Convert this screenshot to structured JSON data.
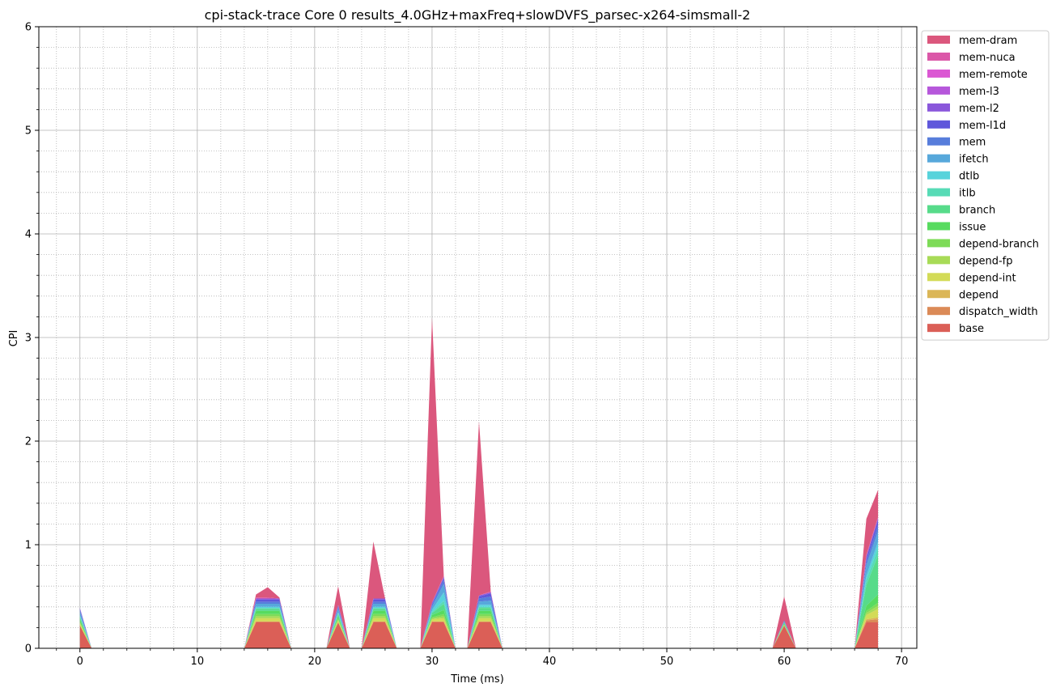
{
  "chart_data": {
    "type": "area",
    "stacked": true,
    "title": "cpi-stack-trace Core 0 results_4.0GHz+maxFreq+slowDVFS_parsec-x264-simsmall-2",
    "xlabel": "Time (ms)",
    "ylabel": "CPI",
    "xlim": [
      -3.5,
      71.3
    ],
    "ylim": [
      0,
      6
    ],
    "xticks": [
      0,
      10,
      20,
      30,
      40,
      50,
      60,
      70
    ],
    "yticks": [
      0,
      1,
      2,
      3,
      4,
      5,
      6
    ],
    "grid": true,
    "minor_grid": true,
    "legend_position": "outside-top-right",
    "x": [
      0,
      1,
      2,
      3,
      4,
      5,
      6,
      7,
      8,
      9,
      10,
      11,
      12,
      13,
      14,
      15,
      16,
      17,
      18,
      19,
      20,
      21,
      22,
      23,
      24,
      25,
      26,
      27,
      28,
      29,
      30,
      31,
      32,
      33,
      34,
      35,
      36,
      37,
      38,
      39,
      40,
      41,
      42,
      43,
      44,
      45,
      46,
      47,
      48,
      49,
      50,
      51,
      52,
      53,
      54,
      55,
      56,
      57,
      58,
      59,
      60,
      61,
      62,
      63,
      64,
      65,
      66,
      67,
      68
    ],
    "series": [
      {
        "name": "base",
        "color": "#db5f57",
        "values": [
          0.22,
          0,
          0,
          0,
          0,
          0,
          0,
          0,
          0,
          0,
          0,
          0,
          0,
          0,
          0,
          0.25,
          0.25,
          0.25,
          0,
          0,
          0,
          0,
          0.25,
          0,
          0,
          0.25,
          0.25,
          0,
          0,
          0,
          0.25,
          0.25,
          0,
          0,
          0.25,
          0.25,
          0,
          0,
          0,
          0,
          0,
          0,
          0,
          0,
          0,
          0,
          0,
          0,
          0,
          0,
          0,
          0,
          0,
          0,
          0,
          0,
          0,
          0,
          0,
          0,
          0.22,
          0,
          0,
          0,
          0,
          0,
          0,
          0.25,
          0.25
        ]
      },
      {
        "name": "dispatch_width",
        "color": "#db8a57",
        "values": [
          0,
          0,
          0,
          0,
          0,
          0,
          0,
          0,
          0,
          0,
          0,
          0,
          0,
          0,
          0,
          0.01,
          0.01,
          0.01,
          0,
          0,
          0,
          0,
          0,
          0,
          0,
          0.01,
          0.01,
          0,
          0,
          0,
          0.01,
          0.01,
          0,
          0,
          0.01,
          0.01,
          0,
          0,
          0,
          0,
          0,
          0,
          0,
          0,
          0,
          0,
          0,
          0,
          0,
          0,
          0,
          0,
          0,
          0,
          0,
          0,
          0,
          0,
          0,
          0,
          0,
          0,
          0,
          0,
          0,
          0,
          0,
          0.02,
          0.03
        ]
      },
      {
        "name": "depend",
        "color": "#dbb657",
        "values": [
          0,
          0,
          0,
          0,
          0,
          0,
          0,
          0,
          0,
          0,
          0,
          0,
          0,
          0,
          0,
          0,
          0,
          0,
          0,
          0,
          0,
          0,
          0,
          0,
          0,
          0,
          0,
          0,
          0,
          0,
          0,
          0,
          0,
          0,
          0,
          0,
          0,
          0,
          0,
          0,
          0,
          0,
          0,
          0,
          0,
          0,
          0,
          0,
          0,
          0,
          0,
          0,
          0,
          0,
          0,
          0,
          0,
          0,
          0,
          0,
          0,
          0,
          0,
          0,
          0,
          0,
          0,
          0.01,
          0.02
        ]
      },
      {
        "name": "depend-int",
        "color": "#d3db57",
        "values": [
          0.02,
          0,
          0,
          0,
          0,
          0,
          0,
          0,
          0,
          0,
          0,
          0,
          0,
          0,
          0,
          0.03,
          0.03,
          0.03,
          0,
          0,
          0,
          0,
          0.02,
          0,
          0,
          0.03,
          0.03,
          0,
          0,
          0,
          0.02,
          0.03,
          0,
          0,
          0.03,
          0.03,
          0,
          0,
          0,
          0,
          0,
          0,
          0,
          0,
          0,
          0,
          0,
          0,
          0,
          0,
          0,
          0,
          0,
          0,
          0,
          0,
          0,
          0,
          0,
          0,
          0.01,
          0,
          0,
          0,
          0,
          0,
          0,
          0.04,
          0.08
        ]
      },
      {
        "name": "depend-fp",
        "color": "#a8db57",
        "values": [
          0.01,
          0,
          0,
          0,
          0,
          0,
          0,
          0,
          0,
          0,
          0,
          0,
          0,
          0,
          0,
          0.02,
          0.02,
          0.02,
          0,
          0,
          0,
          0,
          0.01,
          0,
          0,
          0.02,
          0.02,
          0,
          0,
          0,
          0.01,
          0.02,
          0,
          0,
          0.02,
          0.02,
          0,
          0,
          0,
          0,
          0,
          0,
          0,
          0,
          0,
          0,
          0,
          0,
          0,
          0,
          0,
          0,
          0,
          0,
          0,
          0,
          0,
          0,
          0,
          0,
          0,
          0,
          0,
          0,
          0,
          0,
          0,
          0.02,
          0.03
        ]
      },
      {
        "name": "depend-branch",
        "color": "#7ddb57",
        "values": [
          0.01,
          0,
          0,
          0,
          0,
          0,
          0,
          0,
          0,
          0,
          0,
          0,
          0,
          0,
          0,
          0.02,
          0.02,
          0.02,
          0,
          0,
          0,
          0,
          0.01,
          0,
          0,
          0.02,
          0.02,
          0,
          0,
          0,
          0.01,
          0.02,
          0,
          0,
          0.02,
          0.02,
          0,
          0,
          0,
          0,
          0,
          0,
          0,
          0,
          0,
          0,
          0,
          0,
          0,
          0,
          0,
          0,
          0,
          0,
          0,
          0,
          0,
          0,
          0,
          0,
          0,
          0,
          0,
          0,
          0,
          0,
          0,
          0.02,
          0.03
        ]
      },
      {
        "name": "issue",
        "color": "#57db5f",
        "values": [
          0.02,
          0,
          0,
          0,
          0,
          0,
          0,
          0,
          0,
          0,
          0,
          0,
          0,
          0,
          0,
          0.03,
          0.03,
          0.03,
          0,
          0,
          0,
          0,
          0.02,
          0,
          0,
          0.03,
          0.03,
          0,
          0,
          0,
          0.02,
          0.04,
          0,
          0,
          0.03,
          0.03,
          0,
          0,
          0,
          0,
          0,
          0,
          0,
          0,
          0,
          0,
          0,
          0,
          0,
          0,
          0,
          0,
          0,
          0,
          0,
          0,
          0,
          0,
          0,
          0,
          0.01,
          0,
          0,
          0,
          0,
          0,
          0,
          0.05,
          0.08
        ]
      },
      {
        "name": "branch",
        "color": "#57db8a",
        "values": [
          0.02,
          0,
          0,
          0,
          0,
          0,
          0,
          0,
          0,
          0,
          0,
          0,
          0,
          0,
          0,
          0.02,
          0.02,
          0.02,
          0,
          0,
          0,
          0,
          0.02,
          0,
          0,
          0.02,
          0.02,
          0,
          0,
          0,
          0.02,
          0.06,
          0,
          0,
          0.03,
          0.03,
          0,
          0,
          0,
          0,
          0,
          0,
          0,
          0,
          0,
          0,
          0,
          0,
          0,
          0,
          0,
          0,
          0,
          0,
          0,
          0,
          0,
          0,
          0,
          0,
          0.01,
          0,
          0,
          0,
          0,
          0,
          0,
          0.2,
          0.38
        ]
      },
      {
        "name": "itlb",
        "color": "#57dbb6",
        "values": [
          0.01,
          0,
          0,
          0,
          0,
          0,
          0,
          0,
          0,
          0,
          0,
          0,
          0,
          0,
          0,
          0.01,
          0.01,
          0.01,
          0,
          0,
          0,
          0,
          0.01,
          0,
          0,
          0.01,
          0.01,
          0,
          0,
          0,
          0.01,
          0.03,
          0,
          0,
          0.01,
          0.01,
          0,
          0,
          0,
          0,
          0,
          0,
          0,
          0,
          0,
          0,
          0,
          0,
          0,
          0,
          0,
          0,
          0,
          0,
          0,
          0,
          0,
          0,
          0,
          0,
          0,
          0,
          0,
          0,
          0,
          0,
          0,
          0.05,
          0.07
        ]
      },
      {
        "name": "dtlb",
        "color": "#57d3db",
        "values": [
          0.01,
          0,
          0,
          0,
          0,
          0,
          0,
          0,
          0,
          0,
          0,
          0,
          0,
          0,
          0,
          0.01,
          0.01,
          0.01,
          0,
          0,
          0,
          0,
          0.01,
          0,
          0,
          0.01,
          0.01,
          0,
          0,
          0,
          0.02,
          0.08,
          0,
          0,
          0.02,
          0.02,
          0,
          0,
          0,
          0,
          0,
          0,
          0,
          0,
          0,
          0,
          0,
          0,
          0,
          0,
          0,
          0,
          0,
          0,
          0,
          0,
          0,
          0,
          0,
          0,
          0,
          0,
          0,
          0,
          0,
          0,
          0,
          0.04,
          0.06
        ]
      },
      {
        "name": "ifetch",
        "color": "#57a8db",
        "values": [
          0.03,
          0,
          0,
          0,
          0,
          0,
          0,
          0,
          0,
          0,
          0,
          0,
          0,
          0,
          0,
          0.03,
          0.03,
          0.03,
          0,
          0,
          0,
          0,
          0.03,
          0,
          0,
          0.03,
          0.03,
          0,
          0,
          0,
          0.03,
          0.08,
          0,
          0,
          0.03,
          0.04,
          0,
          0,
          0,
          0,
          0,
          0,
          0,
          0,
          0,
          0,
          0,
          0,
          0,
          0,
          0,
          0,
          0,
          0,
          0,
          0,
          0,
          0,
          0,
          0,
          0.01,
          0,
          0,
          0,
          0,
          0,
          0,
          0.1,
          0.1
        ]
      },
      {
        "name": "mem",
        "color": "#577ddb",
        "values": [
          0.02,
          0,
          0,
          0,
          0,
          0,
          0,
          0,
          0,
          0,
          0,
          0,
          0,
          0,
          0,
          0.02,
          0.02,
          0.02,
          0,
          0,
          0,
          0,
          0.02,
          0,
          0,
          0.02,
          0.02,
          0,
          0,
          0,
          0.02,
          0.04,
          0,
          0,
          0.03,
          0.04,
          0,
          0,
          0,
          0,
          0,
          0,
          0,
          0,
          0,
          0,
          0,
          0,
          0,
          0,
          0,
          0,
          0,
          0,
          0,
          0,
          0,
          0,
          0,
          0,
          0.01,
          0,
          0,
          0,
          0,
          0,
          0,
          0.04,
          0.06
        ]
      },
      {
        "name": "mem-l1d",
        "color": "#5f57db",
        "values": [
          0.01,
          0,
          0,
          0,
          0,
          0,
          0,
          0,
          0,
          0,
          0,
          0,
          0,
          0,
          0,
          0.02,
          0.02,
          0.02,
          0,
          0,
          0,
          0,
          0.01,
          0,
          0,
          0.02,
          0.02,
          0,
          0,
          0,
          0.01,
          0.02,
          0,
          0,
          0.02,
          0.03,
          0,
          0,
          0,
          0,
          0,
          0,
          0,
          0,
          0,
          0,
          0,
          0,
          0,
          0,
          0,
          0,
          0,
          0,
          0,
          0,
          0,
          0,
          0,
          0,
          0,
          0,
          0,
          0,
          0,
          0,
          0,
          0.03,
          0.05
        ]
      },
      {
        "name": "mem-l2",
        "color": "#8a57db",
        "values": [
          0.01,
          0,
          0,
          0,
          0,
          0,
          0,
          0,
          0,
          0,
          0,
          0,
          0,
          0,
          0,
          0.01,
          0.01,
          0.01,
          0,
          0,
          0,
          0,
          0.01,
          0,
          0,
          0.01,
          0.01,
          0,
          0,
          0,
          0.01,
          0.01,
          0,
          0,
          0.01,
          0.01,
          0,
          0,
          0,
          0,
          0,
          0,
          0,
          0,
          0,
          0,
          0,
          0,
          0,
          0,
          0,
          0,
          0,
          0,
          0,
          0,
          0,
          0,
          0,
          0,
          0,
          0,
          0,
          0,
          0,
          0,
          0,
          0.02,
          0.02
        ]
      },
      {
        "name": "mem-l3",
        "color": "#b657db",
        "values": [
          0,
          0,
          0,
          0,
          0,
          0,
          0,
          0,
          0,
          0,
          0,
          0,
          0,
          0,
          0,
          0,
          0,
          0,
          0,
          0,
          0,
          0,
          0,
          0,
          0,
          0,
          0,
          0,
          0,
          0,
          0,
          0,
          0,
          0,
          0,
          0,
          0,
          0,
          0,
          0,
          0,
          0,
          0,
          0,
          0,
          0,
          0,
          0,
          0,
          0,
          0,
          0,
          0,
          0,
          0,
          0,
          0,
          0,
          0,
          0,
          0,
          0,
          0,
          0,
          0,
          0,
          0,
          0,
          0
        ]
      },
      {
        "name": "mem-remote",
        "color": "#db57d3",
        "values": [
          0,
          0,
          0,
          0,
          0,
          0,
          0,
          0,
          0,
          0,
          0,
          0,
          0,
          0,
          0,
          0,
          0,
          0,
          0,
          0,
          0,
          0,
          0,
          0,
          0,
          0,
          0,
          0,
          0,
          0,
          0,
          0,
          0,
          0,
          0,
          0,
          0,
          0,
          0,
          0,
          0,
          0,
          0,
          0,
          0,
          0,
          0,
          0,
          0,
          0,
          0,
          0,
          0,
          0,
          0,
          0,
          0,
          0,
          0,
          0,
          0,
          0,
          0,
          0,
          0,
          0,
          0,
          0,
          0
        ]
      },
      {
        "name": "mem-nuca",
        "color": "#db57a8",
        "values": [
          0,
          0,
          0,
          0,
          0,
          0,
          0,
          0,
          0,
          0,
          0,
          0,
          0,
          0,
          0,
          0.01,
          0.01,
          0,
          0,
          0,
          0,
          0,
          0,
          0,
          0,
          0,
          0,
          0,
          0,
          0,
          0,
          0.01,
          0,
          0,
          0,
          0.01,
          0,
          0,
          0,
          0,
          0,
          0,
          0,
          0,
          0,
          0,
          0,
          0,
          0,
          0,
          0,
          0,
          0,
          0,
          0,
          0,
          0,
          0,
          0,
          0,
          0,
          0,
          0,
          0,
          0,
          0,
          0,
          0.01,
          0.01
        ]
      },
      {
        "name": "mem-dram",
        "color": "#db577d",
        "values": [
          0,
          0,
          0,
          0,
          0,
          0,
          0,
          0,
          0,
          0,
          0,
          0,
          0,
          0,
          0,
          0.03,
          0.1,
          0.01,
          0,
          0,
          0,
          0,
          0.18,
          0,
          0,
          0.55,
          0,
          0,
          0,
          0,
          2.75,
          0,
          0,
          0,
          1.68,
          0,
          0,
          0,
          0,
          0,
          0,
          0,
          0,
          0,
          0,
          0,
          0,
          0,
          0,
          0,
          0,
          0,
          0,
          0,
          0,
          0,
          0,
          0,
          0,
          0,
          0.23,
          0,
          0,
          0,
          0,
          0,
          0,
          0.35,
          0.26
        ]
      }
    ]
  }
}
